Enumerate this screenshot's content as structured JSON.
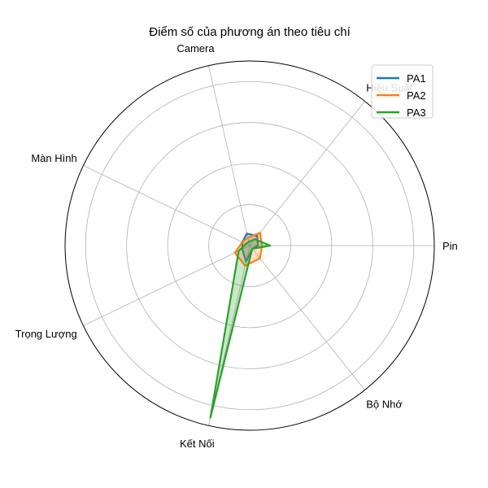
{
  "chart_data": {
    "type": "radar",
    "title": "Điểm số của phương án theo tiêu chí",
    "categories": [
      "Pin",
      "Hiệu Suất",
      "Camera",
      "Màn Hình",
      "Trọng Lượng",
      "Kết Nối",
      "Bộ Nhớ"
    ],
    "rmax": 225,
    "rticks": [
      50,
      100,
      150,
      200
    ],
    "grid": true,
    "legend_position": "top-right",
    "series": [
      {
        "name": "PA1",
        "color": "#1f77b4",
        "values": [
          10,
          15,
          15,
          10,
          10,
          20,
          5
        ]
      },
      {
        "name": "PA2",
        "color": "#ff7f0e",
        "values": [
          15,
          20,
          10,
          10,
          20,
          25,
          20
        ]
      },
      {
        "name": "PA3",
        "color": "#2ca02c",
        "values": [
          25,
          10,
          5,
          5,
          15,
          215,
          5
        ]
      }
    ]
  }
}
